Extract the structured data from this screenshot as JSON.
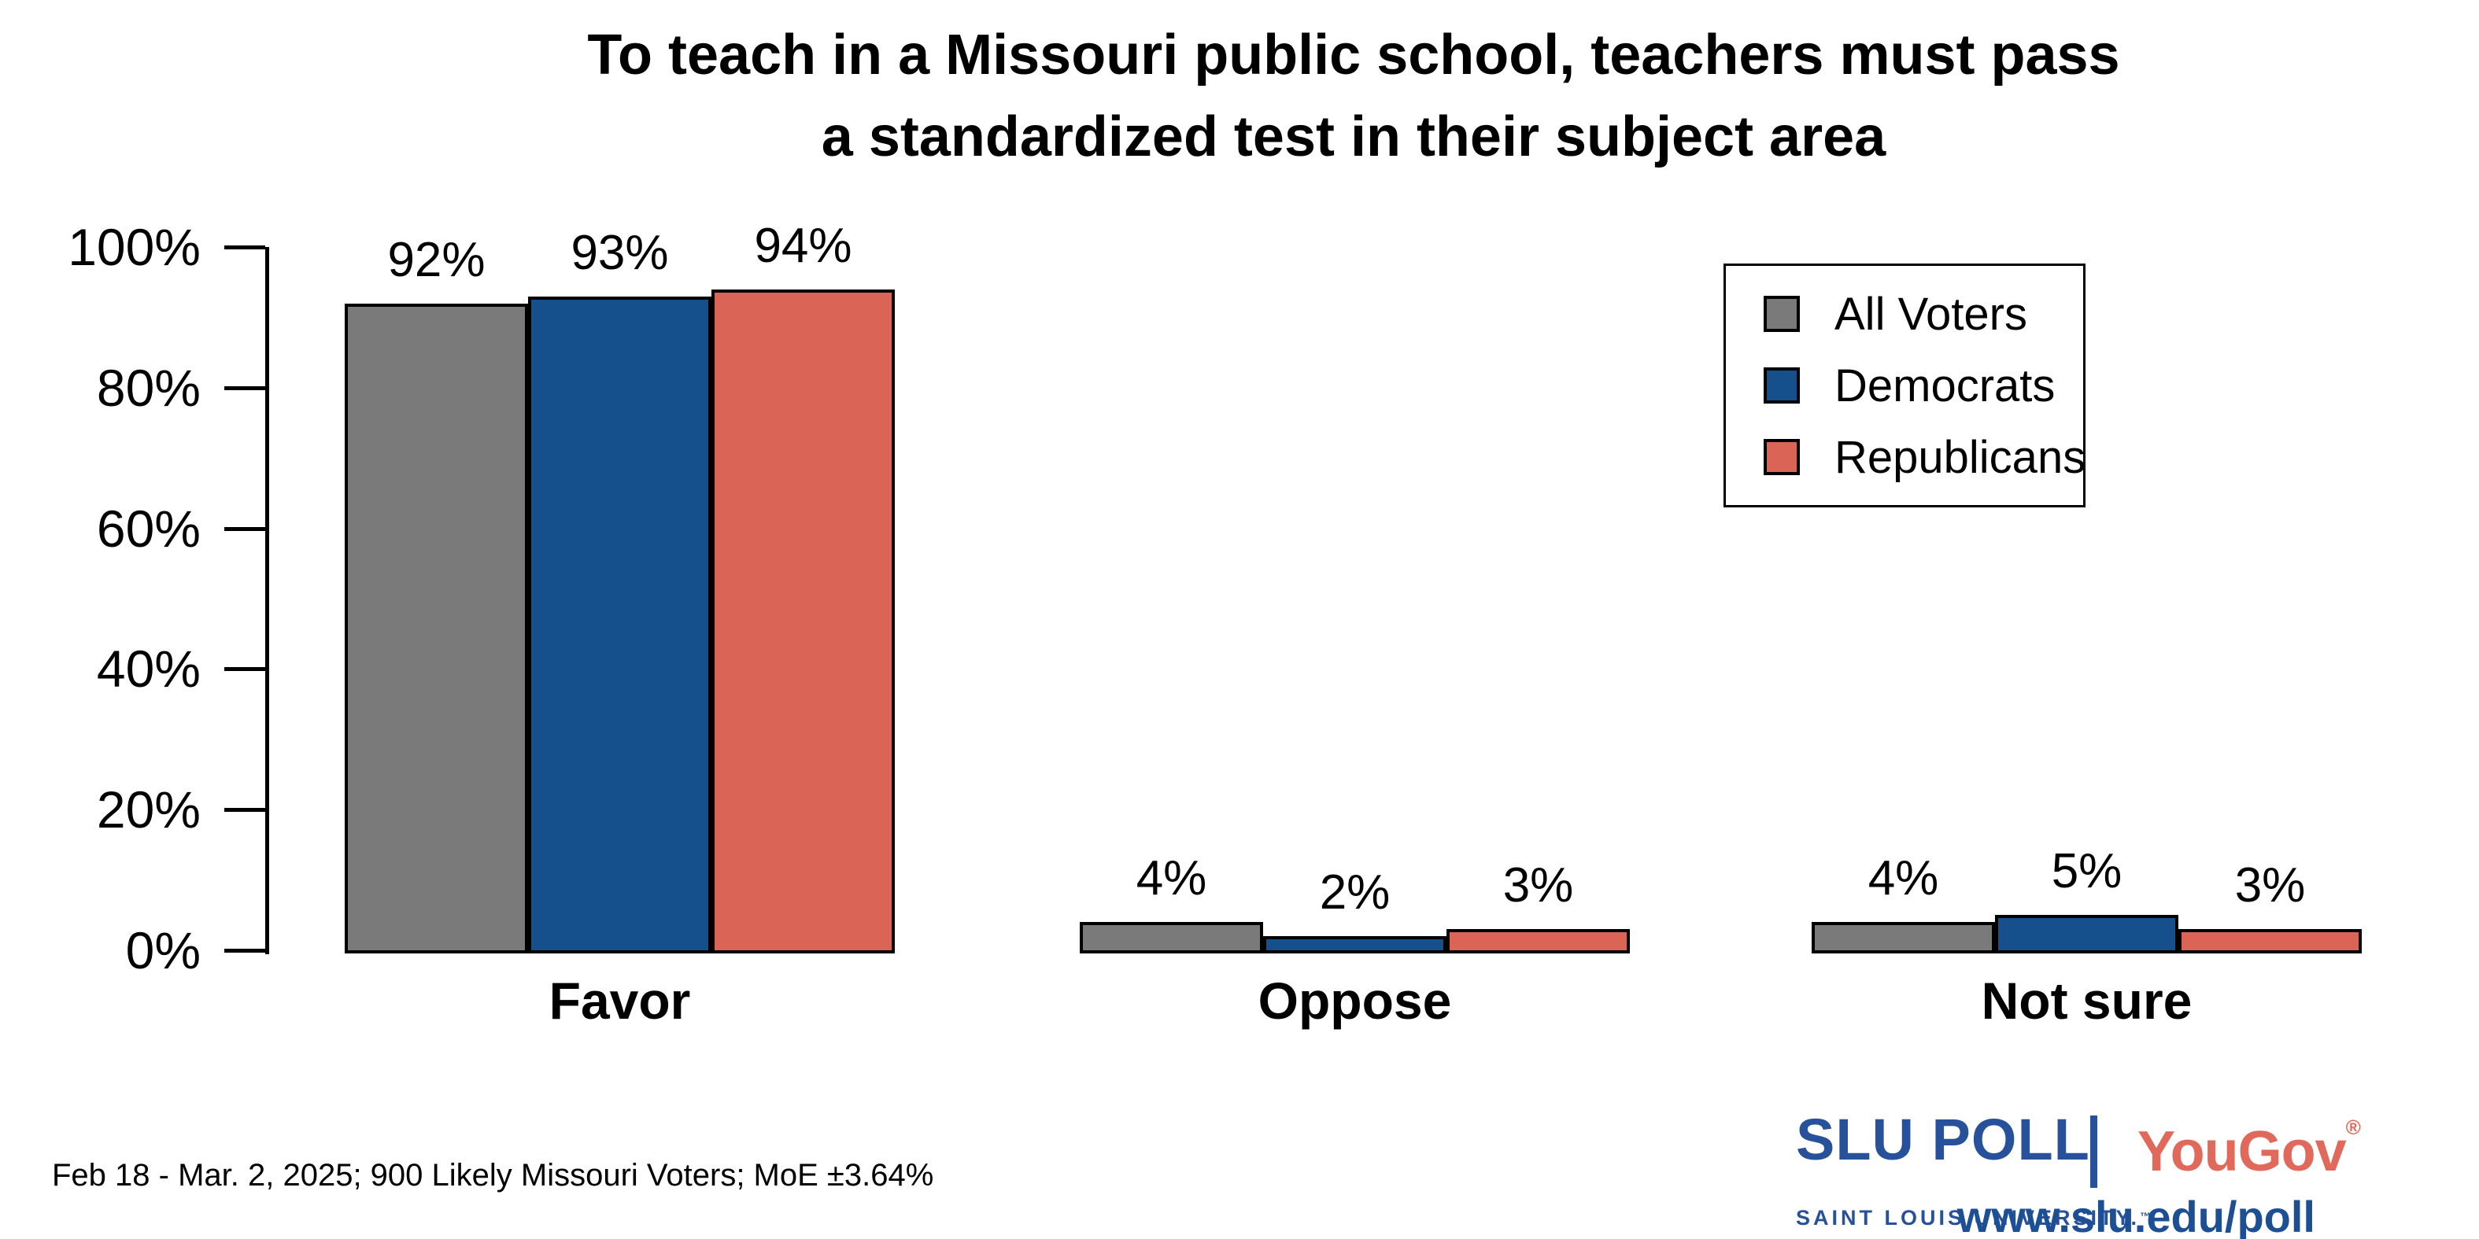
{
  "title": {
    "line1": "To teach in a Missouri public school, teachers must pass",
    "line2": "a standardized test in their subject area"
  },
  "chart_data": {
    "type": "bar",
    "title": "To teach in a Missouri public school, teachers must pass a standardized test in their subject area",
    "categories": [
      "Favor",
      "Oppose",
      "Not sure"
    ],
    "series": [
      {
        "name": "All Voters",
        "color": "#7a7a7a",
        "values": [
          92,
          4,
          4
        ]
      },
      {
        "name": "Democrats",
        "color": "#15508c",
        "values": [
          93,
          2,
          5
        ]
      },
      {
        "name": "Republicans",
        "color": "#da6557",
        "values": [
          94,
          3,
          3
        ]
      }
    ],
    "value_label_format": "percent",
    "value_labels": [
      [
        "92%",
        "93%",
        "94%"
      ],
      [
        "4%",
        "2%",
        "3%"
      ],
      [
        "4%",
        "5%",
        "3%"
      ]
    ],
    "xlabel": "",
    "ylabel": "",
    "y_ticks": [
      "100%",
      "80%",
      "60%",
      "40%",
      "20%",
      "0%"
    ],
    "ylim": [
      0,
      100
    ],
    "grid": false,
    "legend_position": "upper right",
    "bar_outline_color": "#000000"
  },
  "legend": {
    "items": [
      {
        "label": "All Voters",
        "color": "#7a7a7a"
      },
      {
        "label": "Democrats",
        "color": "#15508c"
      },
      {
        "label": "Republicans",
        "color": "#da6557"
      }
    ]
  },
  "footer": {
    "note": "Feb 18 - Mar. 2, 2025; 900 Likely Missouri Voters; MoE ±3.64%"
  },
  "branding": {
    "slu_poll": "SLU POLL",
    "slu_subtitle": "SAINT LOUIS UNIVERSITY.",
    "slu_trademark": "™",
    "yougov": "YouGov",
    "yougov_registered": "®",
    "url": "www.slu.edu/poll",
    "slu_blue": "#27519b",
    "yougov_coral": "#e0695c",
    "url_blue": "#1d4f94"
  }
}
